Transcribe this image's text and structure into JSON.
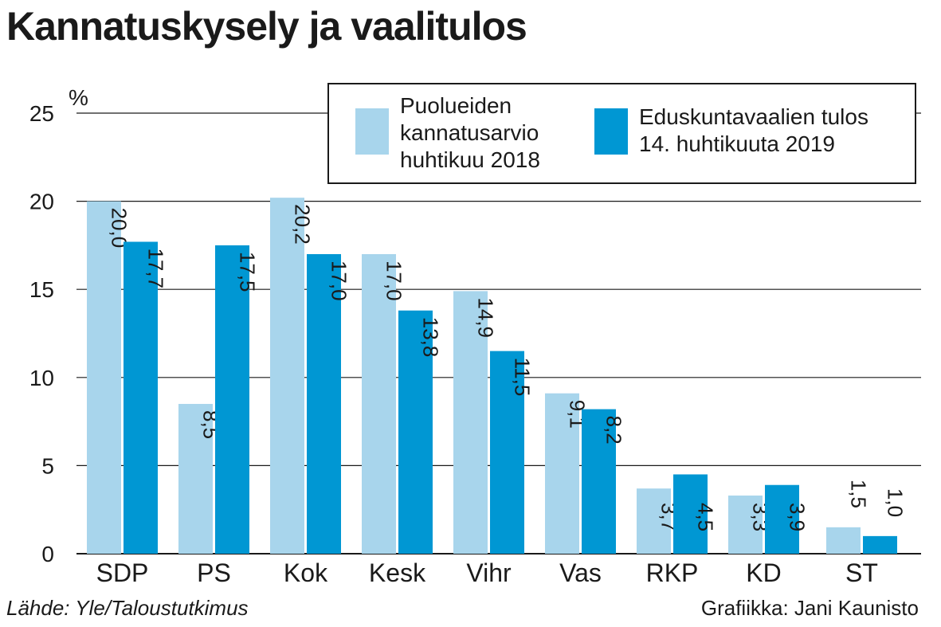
{
  "title": "Kannatuskysely ja vaalitulos",
  "source": "Lähde: Yle/Taloustutkimus",
  "credit": "Grafiikka: Jani Kaunisto",
  "colors": {
    "light": "#a8d5ec",
    "dark": "#0097d3",
    "grid": "#1a1a1a"
  },
  "chart_data": {
    "type": "bar",
    "title": "Kannatuskysely ja vaalitulos",
    "ylabel": "%",
    "ylim": [
      0,
      25
    ],
    "yticks": [
      "0",
      "5",
      "10",
      "15",
      "20",
      "25"
    ],
    "grid": true,
    "legend_position": "top-right",
    "categories": [
      "SDP",
      "PS",
      "Kok",
      "Kesk",
      "Vihr",
      "Vas",
      "RKP",
      "KD",
      "ST"
    ],
    "series": [
      {
        "name": "Puolueiden kannatusarvio huhtikuu 2018",
        "values": [
          20.0,
          8.5,
          20.2,
          17.0,
          14.9,
          9.1,
          3.7,
          3.3,
          1.5
        ],
        "labels": [
          "20,0",
          "8,5",
          "20,2",
          "17,0",
          "14,9",
          "9,1",
          "3,7",
          "3,3",
          "1,5"
        ]
      },
      {
        "name": "Eduskuntavaalien tulos 14. huhtikuuta 2019",
        "values": [
          17.7,
          17.5,
          17.0,
          13.8,
          11.5,
          8.2,
          4.5,
          3.9,
          1.0
        ],
        "labels": [
          "17,7",
          "17,5",
          "17,0",
          "13,8",
          "11,5",
          "8,2",
          "4,5",
          "3,9",
          "1,0"
        ]
      }
    ]
  },
  "legend": {
    "item1": "Puolueiden\nkannatusarvio\nhuhtikuu 2018",
    "item2": "Eduskuntavaalien tulos\n14. huhtikuuta 2019"
  }
}
